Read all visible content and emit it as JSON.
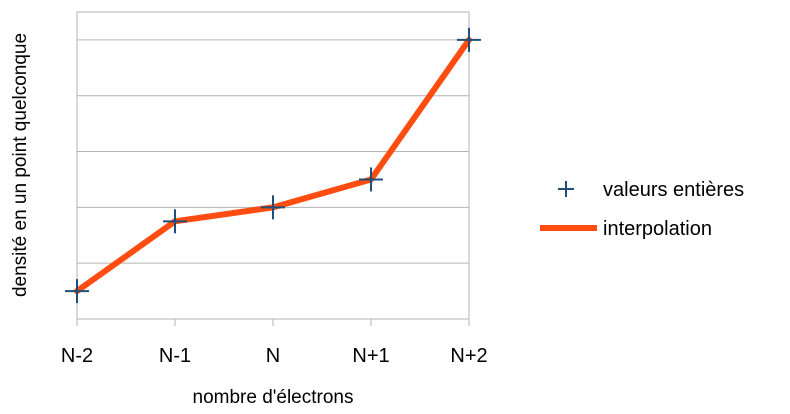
{
  "chart_data": {
    "type": "line",
    "title": "",
    "xlabel": "nombre d'électrons",
    "ylabel": "densité en un point quelconque",
    "categories": [
      "N-2",
      "N-1",
      "N",
      "N+1",
      "N+2"
    ],
    "ylim": [
      0,
      5.5
    ],
    "y_tick_labels_shown": false,
    "grid": "horizontal",
    "legend_position": "right",
    "series": [
      {
        "name": "valeurs entières",
        "kind": "marker",
        "marker": "plus",
        "color": "#1f4e79",
        "values": [
          0.5,
          1.75,
          2.0,
          2.5,
          5.0
        ]
      },
      {
        "name": "interpolation",
        "kind": "line",
        "color": "#ff4d12",
        "values": [
          0.5,
          1.75,
          2.0,
          2.5,
          5.0
        ]
      }
    ]
  }
}
